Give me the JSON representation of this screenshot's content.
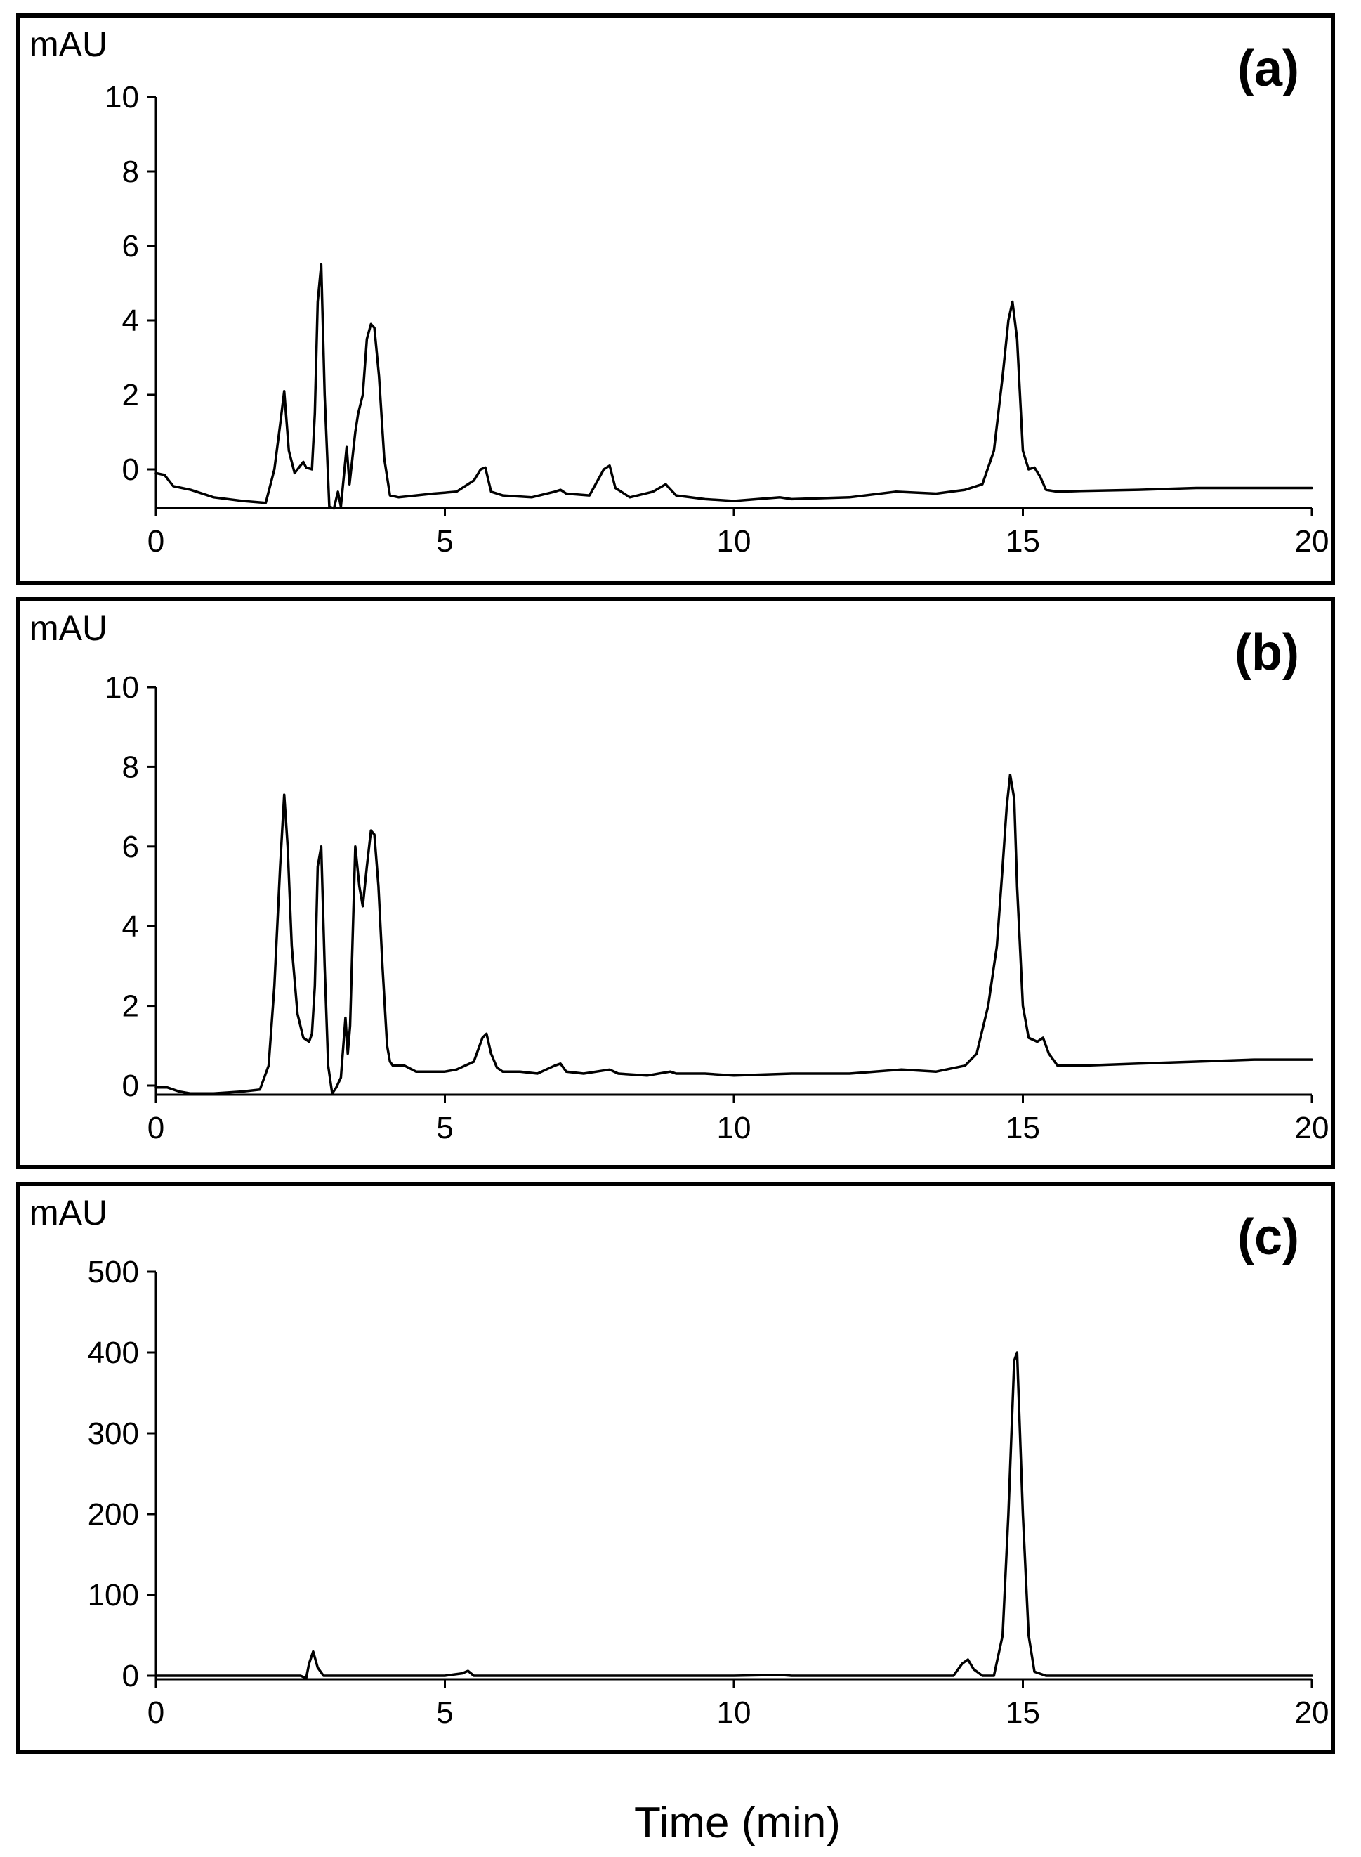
{
  "xlabel": "Time (min)",
  "chart_data": [
    {
      "type": "line",
      "panel_label": "(a)",
      "ylabel": "mAU",
      "xlim": [
        0,
        20
      ],
      "ylim": [
        -1,
        10
      ],
      "x_ticks": [
        0,
        5,
        10,
        15,
        20
      ],
      "y_ticks": [
        0,
        2,
        4,
        6,
        8,
        10
      ],
      "series": [
        {
          "x": [
            0,
            0.15,
            0.3,
            0.6,
            1.0,
            1.5,
            1.9,
            2.05,
            2.15,
            2.22,
            2.3,
            2.4,
            2.5,
            2.55,
            2.6,
            2.7,
            2.75,
            2.8,
            2.86,
            2.92,
            3.0,
            3.08,
            3.15,
            3.2,
            3.25,
            3.3,
            3.35,
            3.4,
            3.45,
            3.5,
            3.58,
            3.65,
            3.72,
            3.78,
            3.86,
            3.95,
            4.05,
            4.2,
            4.5,
            4.8,
            5.2,
            5.5,
            5.62,
            5.7,
            5.8,
            6.0,
            6.5,
            6.9,
            7.0,
            7.1,
            7.5,
            7.75,
            7.85,
            7.95,
            8.2,
            8.6,
            8.82,
            9.0,
            9.5,
            10.0,
            10.8,
            11.0,
            12.0,
            12.8,
            13.5,
            14.0,
            14.3,
            14.5,
            14.65,
            14.75,
            14.82,
            14.9,
            15.0,
            15.1,
            15.2,
            15.3,
            15.4,
            15.6,
            16.0,
            17.0,
            18.0,
            19.0,
            20.0
          ],
          "y": [
            -0.1,
            -0.15,
            -0.45,
            -0.55,
            -0.75,
            -0.85,
            -0.9,
            0,
            1.2,
            2.1,
            0.5,
            -0.1,
            0.1,
            0.2,
            0.05,
            0,
            1.5,
            4.5,
            5.5,
            2.0,
            -1.0,
            -1.05,
            -0.6,
            -1.0,
            -0.2,
            0.6,
            -0.4,
            0.3,
            1.0,
            1.5,
            2.0,
            3.5,
            3.9,
            3.8,
            2.5,
            0.3,
            -0.7,
            -0.75,
            -0.7,
            -0.65,
            -0.6,
            -0.3,
            0,
            0.05,
            -0.6,
            -0.7,
            -0.75,
            -0.6,
            -0.55,
            -0.65,
            -0.7,
            0,
            0.1,
            -0.5,
            -0.75,
            -0.6,
            -0.4,
            -0.7,
            -0.8,
            -0.85,
            -0.75,
            -0.8,
            -0.75,
            -0.6,
            -0.65,
            -0.55,
            -0.4,
            0.5,
            2.5,
            4.0,
            4.5,
            3.5,
            0.5,
            0.0,
            0.05,
            -0.2,
            -0.55,
            -0.6,
            -0.58,
            -0.55,
            -0.5,
            -0.5,
            -0.5
          ]
        }
      ]
    },
    {
      "type": "line",
      "panel_label": "(b)",
      "ylabel": "mAU",
      "xlim": [
        0,
        20
      ],
      "ylim": [
        -0.4,
        10
      ],
      "x_ticks": [
        0,
        5,
        10,
        15,
        20
      ],
      "y_ticks": [
        0,
        2,
        4,
        6,
        8,
        10
      ],
      "series": [
        {
          "x": [
            0,
            0.2,
            0.4,
            0.6,
            1.0,
            1.5,
            1.8,
            1.95,
            2.05,
            2.15,
            2.22,
            2.28,
            2.35,
            2.45,
            2.55,
            2.65,
            2.7,
            2.75,
            2.8,
            2.86,
            2.92,
            2.98,
            3.05,
            3.12,
            3.2,
            3.28,
            3.32,
            3.36,
            3.4,
            3.45,
            3.52,
            3.58,
            3.65,
            3.72,
            3.78,
            3.85,
            3.92,
            4.0,
            4.05,
            4.1,
            4.3,
            4.5,
            4.8,
            5.0,
            5.2,
            5.5,
            5.65,
            5.72,
            5.8,
            5.9,
            6.0,
            6.3,
            6.6,
            6.9,
            7.0,
            7.1,
            7.4,
            7.85,
            8.0,
            8.5,
            8.9,
            9.0,
            9.5,
            10.0,
            11.0,
            12.0,
            12.9,
            13.5,
            14.0,
            14.2,
            14.4,
            14.55,
            14.65,
            14.72,
            14.78,
            14.85,
            14.9,
            15.0,
            15.1,
            15.25,
            15.35,
            15.45,
            15.6,
            16.0,
            17.0,
            18.0,
            19.0,
            20.0
          ],
          "y": [
            -0.05,
            -0.05,
            -0.15,
            -0.2,
            -0.2,
            -0.15,
            -0.1,
            0.5,
            2.5,
            5.5,
            7.3,
            6.0,
            3.5,
            1.8,
            1.2,
            1.1,
            1.3,
            2.5,
            5.5,
            6.0,
            3.0,
            0.5,
            -0.2,
            -0.05,
            0.2,
            1.7,
            0.8,
            1.5,
            3.5,
            6.0,
            5.0,
            4.5,
            5.5,
            6.4,
            6.3,
            5.0,
            3.0,
            1.0,
            0.6,
            0.5,
            0.5,
            0.35,
            0.35,
            0.35,
            0.4,
            0.6,
            1.2,
            1.3,
            0.8,
            0.45,
            0.35,
            0.35,
            0.3,
            0.5,
            0.55,
            0.35,
            0.3,
            0.4,
            0.3,
            0.25,
            0.35,
            0.3,
            0.3,
            0.25,
            0.3,
            0.3,
            0.4,
            0.35,
            0.5,
            0.8,
            2.0,
            3.5,
            5.5,
            7.0,
            7.8,
            7.2,
            5.0,
            2.0,
            1.2,
            1.1,
            1.2,
            0.8,
            0.5,
            0.5,
            0.55,
            0.6,
            0.65,
            0.65
          ]
        }
      ]
    },
    {
      "type": "line",
      "panel_label": "(c)",
      "ylabel": "mAU",
      "xlim": [
        0,
        20
      ],
      "ylim": [
        -10,
        500
      ],
      "x_ticks": [
        0,
        5,
        10,
        15,
        20
      ],
      "y_ticks": [
        0,
        100,
        200,
        300,
        400,
        500
      ],
      "series": [
        {
          "x": [
            0,
            2.5,
            2.6,
            2.65,
            2.72,
            2.8,
            2.9,
            3.0,
            5.0,
            5.3,
            5.4,
            5.5,
            6.0,
            10.0,
            10.8,
            11.0,
            13.8,
            13.95,
            14.05,
            14.15,
            14.3,
            14.5,
            14.65,
            14.75,
            14.85,
            14.9,
            15.0,
            15.1,
            15.2,
            15.4,
            16.0,
            20.0
          ],
          "y": [
            0,
            0,
            -3,
            15,
            30,
            10,
            0,
            0,
            0,
            3,
            6,
            0,
            0,
            0,
            1,
            0,
            0,
            15,
            20,
            8,
            0,
            0,
            50,
            200,
            390,
            400,
            200,
            50,
            5,
            0,
            0,
            0
          ]
        }
      ]
    }
  ]
}
